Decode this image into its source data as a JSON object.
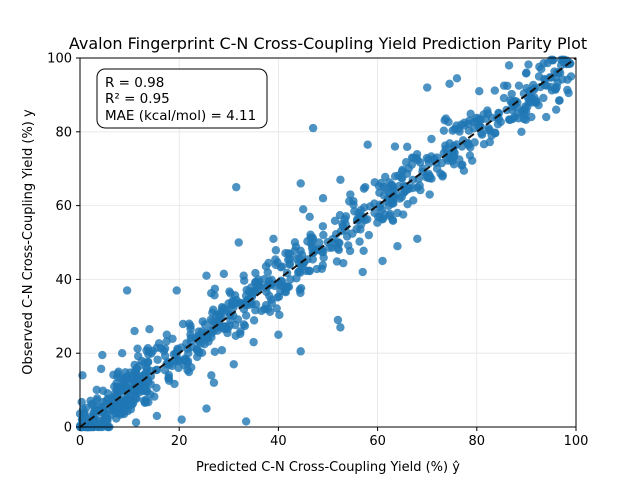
{
  "chart_data": {
    "type": "scatter",
    "title": "Avalon Fingerprint C-N Cross-Coupling Yield Prediction Parity Plot",
    "xlabel": "Predicted C-N Cross-Coupling Yield (%) ŷ",
    "ylabel": "Observed C-N Cross-Coupling Yield (%) y",
    "xlim": [
      0,
      100
    ],
    "ylim": [
      0,
      100
    ],
    "x_ticks": [
      "0",
      "20",
      "40",
      "60",
      "80",
      "100"
    ],
    "y_ticks": [
      "0",
      "20",
      "40",
      "60",
      "80",
      "100"
    ],
    "grid": true,
    "stats": [
      "R = 0.98",
      "R² = 0.95",
      "MAE (kcal/mol) = 4.11"
    ],
    "stats_placement": "top-left",
    "colors": {
      "points": "#1f77b4",
      "identity_line": "#111111",
      "grid": "#e5e5e5"
    },
    "identity_line": {
      "from": [
        0,
        0
      ],
      "to": [
        100,
        100
      ],
      "style": "dashed"
    },
    "outliers": [
      {
        "x": 9.5,
        "y": 37.0
      },
      {
        "x": 19.5,
        "y": 37.0
      },
      {
        "x": 31.5,
        "y": 65.0
      },
      {
        "x": 44.5,
        "y": 20.5
      },
      {
        "x": 33.5,
        "y": 1.5
      },
      {
        "x": 47.0,
        "y": 81.0
      },
      {
        "x": 44.5,
        "y": 66.0
      },
      {
        "x": 52.0,
        "y": 29.0
      },
      {
        "x": 52.5,
        "y": 27.0
      },
      {
        "x": 0.5,
        "y": 14.0
      },
      {
        "x": 4.5,
        "y": 19.5
      },
      {
        "x": 0.5,
        "y": 2.0
      },
      {
        "x": 8.5,
        "y": 20.0
      },
      {
        "x": 15.5,
        "y": 3.0
      },
      {
        "x": 25.5,
        "y": 5.0
      },
      {
        "x": 20.5,
        "y": 2.0
      },
      {
        "x": 64.0,
        "y": 49.0
      },
      {
        "x": 68.0,
        "y": 51.0
      },
      {
        "x": 86.5,
        "y": 98.0
      },
      {
        "x": 76.0,
        "y": 94.5
      },
      {
        "x": 70.0,
        "y": 92.0
      },
      {
        "x": 74.5,
        "y": 93.0
      },
      {
        "x": 62.0,
        "y": 61.0
      },
      {
        "x": 90.0,
        "y": 96.0
      },
      {
        "x": 93.0,
        "y": 97.0
      },
      {
        "x": 97.0,
        "y": 98.0
      },
      {
        "x": 99.0,
        "y": 95.0
      },
      {
        "x": 98.5,
        "y": 90.5
      },
      {
        "x": 94.0,
        "y": 84.0
      },
      {
        "x": 91.0,
        "y": 84.0
      },
      {
        "x": 89.0,
        "y": 80.0
      },
      {
        "x": 83.0,
        "y": 79.0
      },
      {
        "x": 78.5,
        "y": 83.0
      },
      {
        "x": 77.0,
        "y": 76.0
      },
      {
        "x": 72.0,
        "y": 70.0
      },
      {
        "x": 60.5,
        "y": 57.0
      },
      {
        "x": 58.0,
        "y": 76.5
      },
      {
        "x": 63.5,
        "y": 76.0
      },
      {
        "x": 39.0,
        "y": 51.0
      },
      {
        "x": 32.0,
        "y": 50.0
      },
      {
        "x": 33.0,
        "y": 41.0
      },
      {
        "x": 40.0,
        "y": 25.0
      },
      {
        "x": 31.0,
        "y": 17.0
      },
      {
        "x": 27.0,
        "y": 12.0
      },
      {
        "x": 35.0,
        "y": 23.0
      },
      {
        "x": 22.0,
        "y": 28.0
      },
      {
        "x": 17.5,
        "y": 25.0
      },
      {
        "x": 11.0,
        "y": 26.0
      },
      {
        "x": 14.0,
        "y": 26.5
      },
      {
        "x": 25.5,
        "y": 41.0
      },
      {
        "x": 29.0,
        "y": 41.5
      },
      {
        "x": 45.0,
        "y": 59.0
      },
      {
        "x": 49.0,
        "y": 62.0
      },
      {
        "x": 52.5,
        "y": 67.0
      },
      {
        "x": 54.5,
        "y": 63.0
      },
      {
        "x": 57.5,
        "y": 65.0
      },
      {
        "x": 70.5,
        "y": 63.0
      },
      {
        "x": 80.5,
        "y": 91.0
      },
      {
        "x": 85.5,
        "y": 92.5
      },
      {
        "x": 96.0,
        "y": 86.0
      },
      {
        "x": 92.0,
        "y": 88.0
      },
      {
        "x": 88.5,
        "y": 92.5
      },
      {
        "x": 64.0,
        "y": 58.0
      },
      {
        "x": 37.5,
        "y": 33.0
      },
      {
        "x": 57.0,
        "y": 42.0
      },
      {
        "x": 61.0,
        "y": 45.0
      }
    ],
    "band": {
      "slope": 1.0,
      "intercept": 0.0,
      "spread": 3.8,
      "count": 820,
      "x_range": [
        0,
        99
      ]
    },
    "marker_size": 4.2,
    "marker_alpha": 0.8
  }
}
